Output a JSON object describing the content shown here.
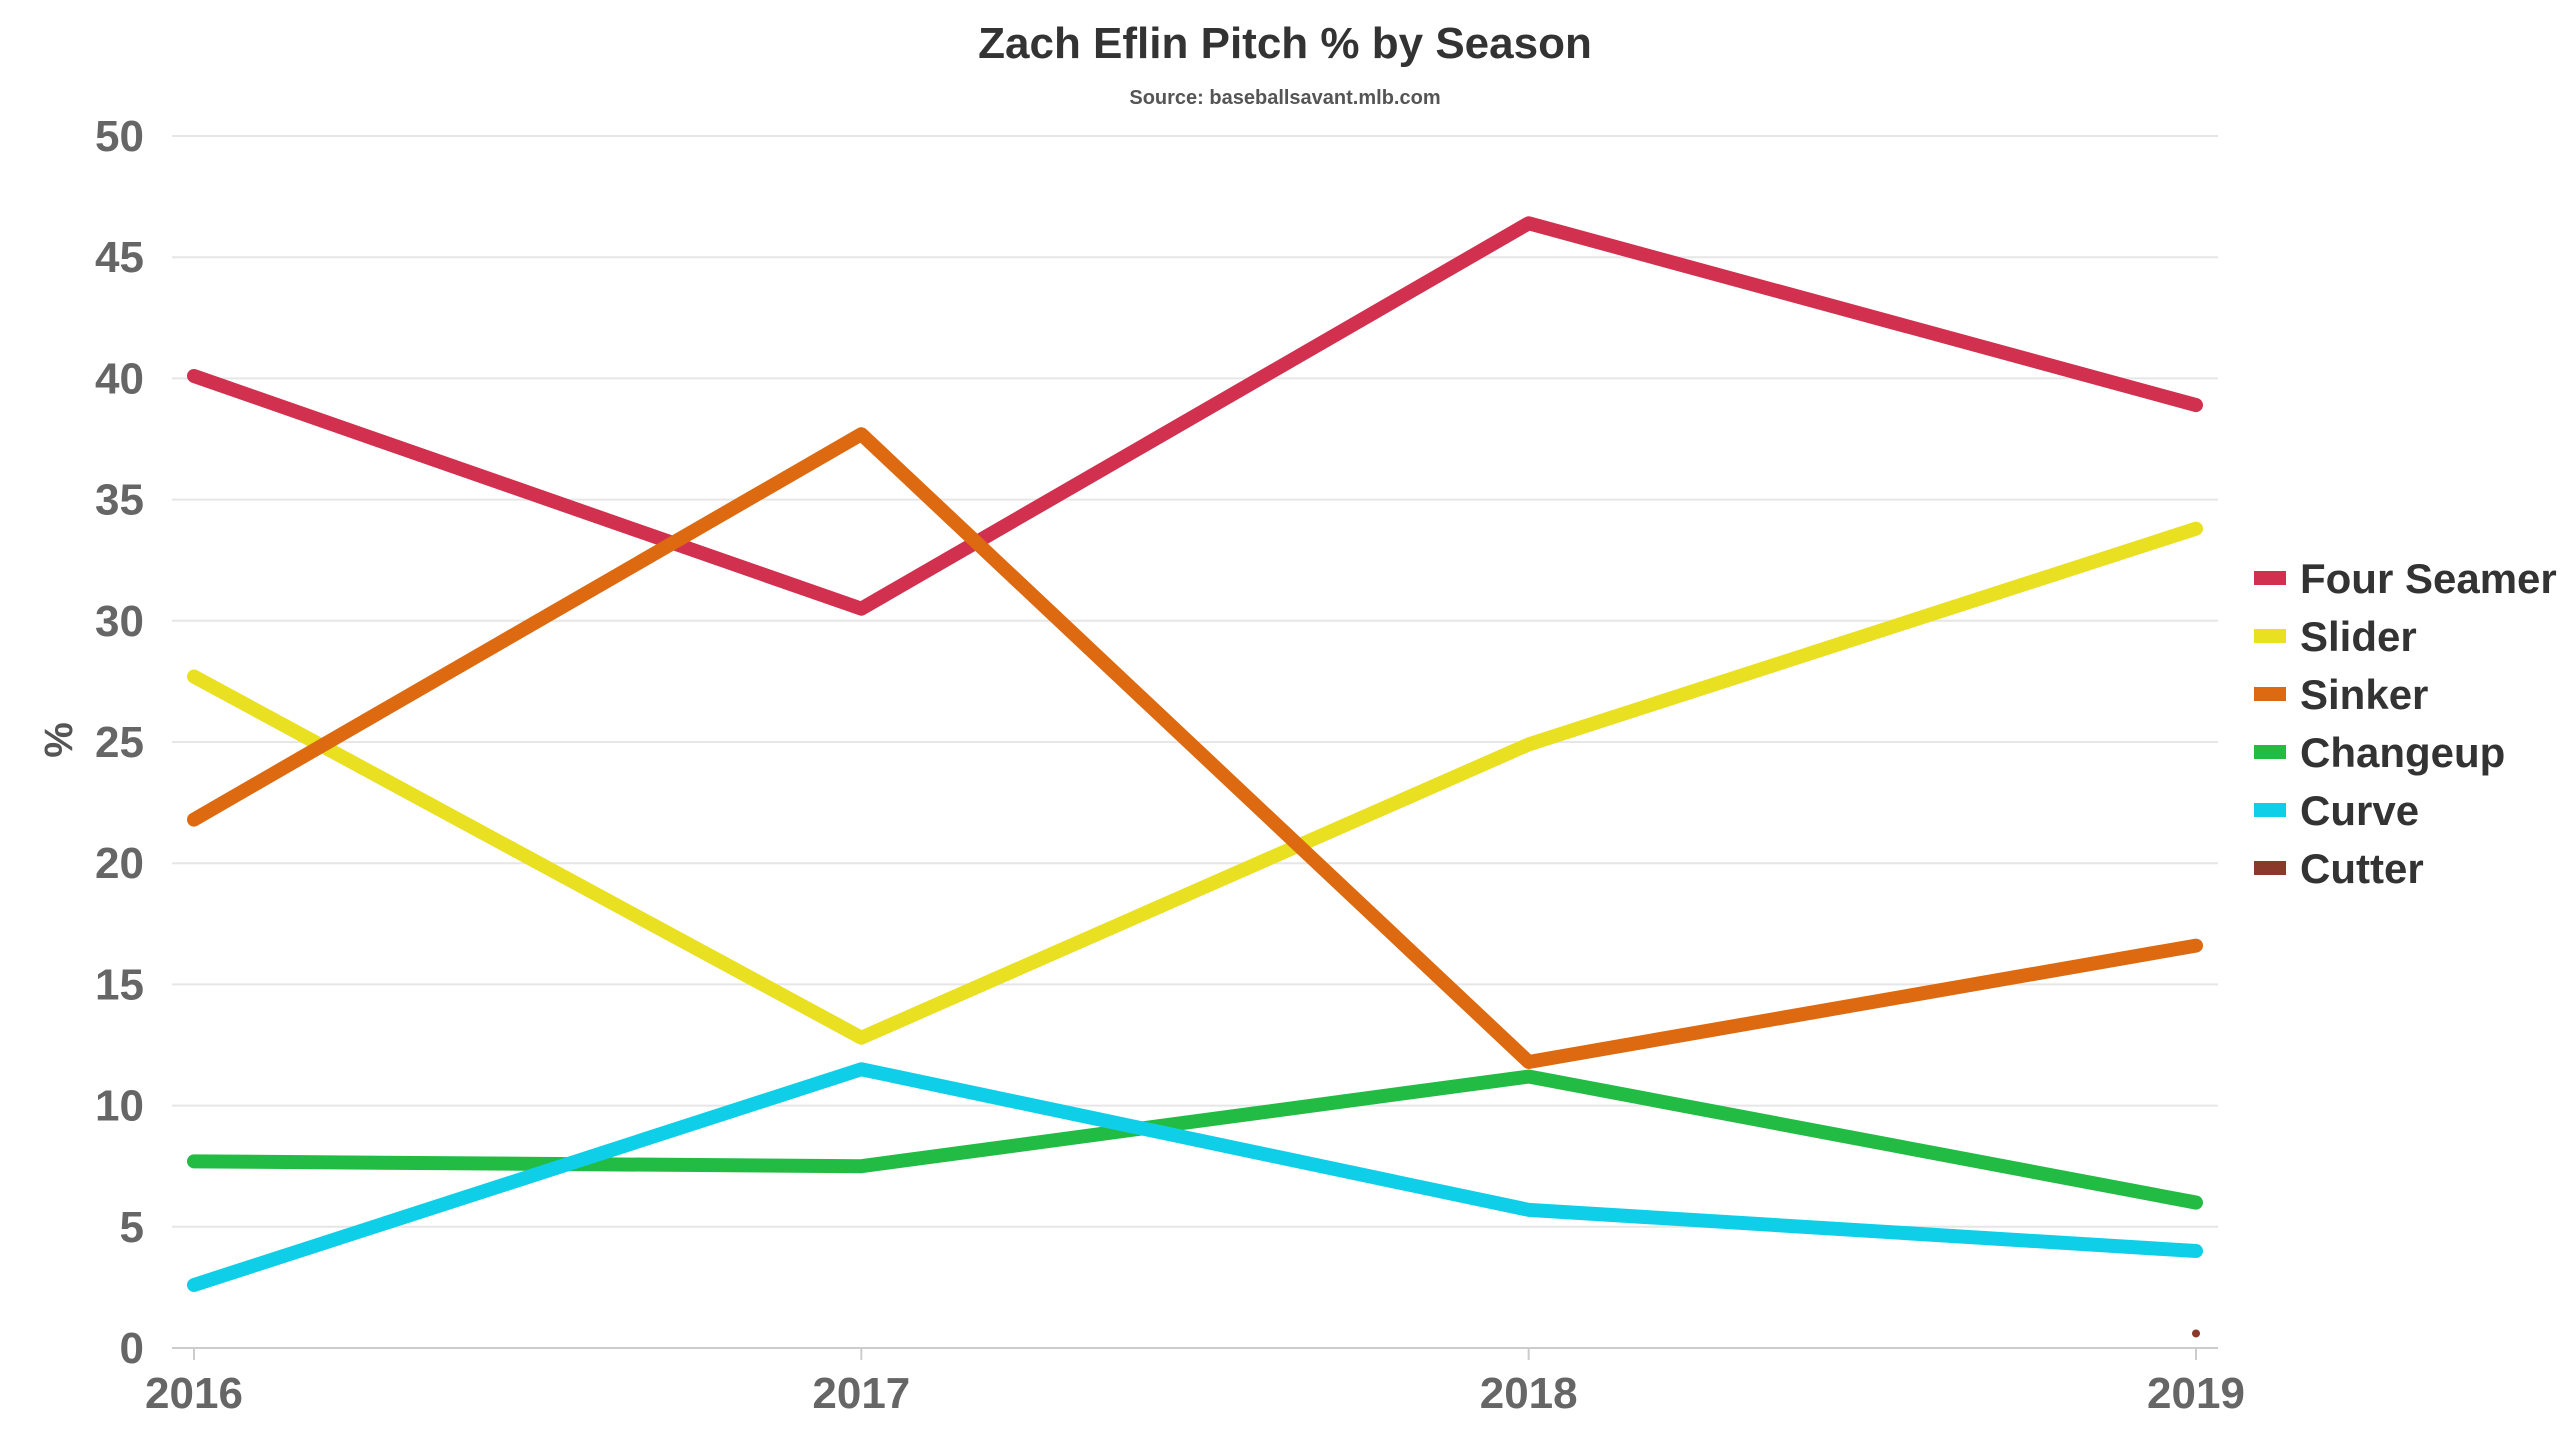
{
  "chart_data": {
    "type": "line",
    "title": "Zach Eflin Pitch % by Season",
    "subtitle": "Source: baseballsavant.mlb.com",
    "xlabel": "",
    "ylabel": "%",
    "categories": [
      "2016",
      "2017",
      "2018",
      "2019"
    ],
    "ylim": [
      0,
      50
    ],
    "yticks": [
      0,
      5,
      10,
      15,
      20,
      25,
      30,
      35,
      40,
      45,
      50
    ],
    "grid": true,
    "legend_position": "right",
    "series": [
      {
        "name": "Four Seamer",
        "color": "#d1304f",
        "values": [
          40.1,
          30.5,
          46.4,
          38.9
        ]
      },
      {
        "name": "Slider",
        "color": "#e8e020",
        "values": [
          27.7,
          12.8,
          24.9,
          33.8
        ]
      },
      {
        "name": "Sinker",
        "color": "#dd6a10",
        "values": [
          21.8,
          37.7,
          11.8,
          16.6
        ]
      },
      {
        "name": "Changeup",
        "color": "#22bb44",
        "values": [
          7.7,
          7.5,
          11.2,
          6.0
        ]
      },
      {
        "name": "Curve",
        "color": "#0fcfe8",
        "values": [
          2.6,
          11.5,
          5.7,
          4.0
        ]
      },
      {
        "name": "Cutter",
        "color": "#8b3a2a",
        "values": [
          null,
          null,
          null,
          0.6
        ]
      }
    ]
  }
}
